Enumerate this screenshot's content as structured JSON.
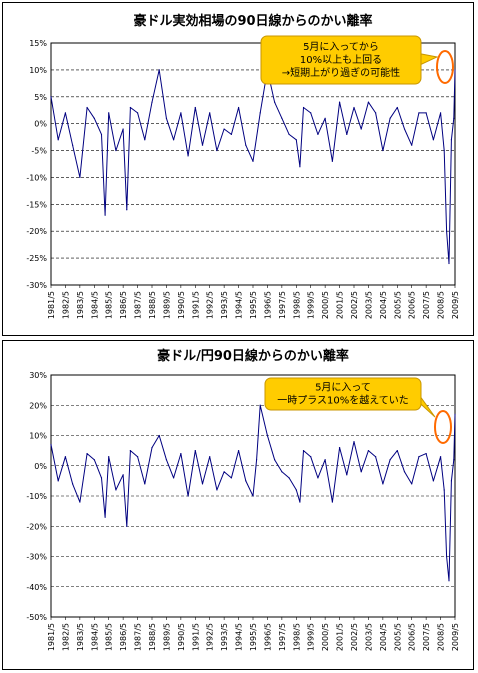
{
  "chart_data": [
    {
      "type": "line",
      "title": "豪ドル実効相場の90日線からのかい離率",
      "ylim": [
        -30,
        15
      ],
      "yticks": [
        15,
        10,
        5,
        0,
        -5,
        -10,
        -15,
        -20,
        -25,
        -30
      ],
      "ytick_labels": [
        "15%",
        "10%",
        "5%",
        "0%",
        "-5%",
        "-10%",
        "-15%",
        "-20%",
        "-25%",
        "-30%"
      ],
      "x_tick_labels": [
        "1981/5",
        "1982/5",
        "1983/5",
        "1984/5",
        "1985/5",
        "1986/5",
        "1987/5",
        "1988/5",
        "1989/5",
        "1990/5",
        "1991/5",
        "1992/5",
        "1993/5",
        "1994/5",
        "1995/5",
        "1996/5",
        "1997/5",
        "1998/5",
        "1999/5",
        "2000/5",
        "2001/5",
        "2002/5",
        "2003/5",
        "2004/5",
        "2005/5",
        "2006/5",
        "2007/5",
        "2008/5",
        "2009/5"
      ],
      "grid": "horizontal-dashed",
      "line_color": "#000080",
      "annotation": [
        "5月に入ってから",
        "10%以上も上回る",
        "→短期上がり過ぎの可能性"
      ],
      "series": [
        {
          "x": [
            "1981/5",
            "1981/11",
            "1982/5",
            "1982/11",
            "1983/5",
            "1983/11",
            "1984/5",
            "1984/11",
            "1985/2",
            "1985/5",
            "1985/11",
            "1986/5",
            "1986/8",
            "1986/11",
            "1987/5",
            "1987/11",
            "1988/5",
            "1988/11",
            "1989/5",
            "1989/11",
            "1990/5",
            "1990/11",
            "1991/5",
            "1991/11",
            "1992/5",
            "1992/11",
            "1993/5",
            "1993/11",
            "1994/5",
            "1994/11",
            "1995/5",
            "1995/11",
            "1996/5",
            "1996/11",
            "1997/5",
            "1997/11",
            "1998/5",
            "1998/8",
            "1998/11",
            "1999/5",
            "1999/11",
            "2000/5",
            "2000/11",
            "2001/5",
            "2001/11",
            "2002/5",
            "2002/11",
            "2003/5",
            "2003/11",
            "2004/5",
            "2004/11",
            "2005/5",
            "2005/11",
            "2006/5",
            "2006/11",
            "2007/5",
            "2007/11",
            "2008/5",
            "2008/8",
            "2008/10",
            "2008/12",
            "2009/2",
            "2009/4",
            "2009/5"
          ],
          "values": [
            5,
            -3,
            2,
            -4,
            -10,
            3,
            1,
            -2,
            -17,
            2,
            -5,
            -1,
            -16,
            3,
            2,
            -3,
            4,
            10,
            1,
            -3,
            2,
            -6,
            3,
            -4,
            2,
            -5,
            -1,
            -2,
            3,
            -4,
            -7,
            2,
            10,
            4,
            1,
            -2,
            -3,
            -8,
            3,
            2,
            -2,
            1,
            -7,
            4,
            -2,
            3,
            -1,
            4,
            2,
            -5,
            1,
            3,
            -1,
            -4,
            2,
            2,
            -3,
            2,
            -5,
            -20,
            -26,
            -3,
            1,
            10
          ]
        }
      ]
    },
    {
      "type": "line",
      "title": "豪ドル/円90日線からのかい離率",
      "ylim": [
        -50,
        30
      ],
      "yticks": [
        30,
        20,
        10,
        0,
        -10,
        -20,
        -30,
        -40,
        -50
      ],
      "ytick_labels": [
        "30%",
        "20%",
        "10%",
        "0%",
        "-10%",
        "-20%",
        "-30%",
        "-40%",
        "-50%"
      ],
      "x_tick_labels": [
        "1981/5",
        "1982/5",
        "1983/5",
        "1984/5",
        "1985/5",
        "1986/5",
        "1987/5",
        "1988/5",
        "1989/5",
        "1990/5",
        "1991/5",
        "1992/5",
        "1993/5",
        "1994/5",
        "1995/5",
        "1996/5",
        "1997/5",
        "1998/5",
        "1999/5",
        "2000/5",
        "2001/5",
        "2002/5",
        "2003/5",
        "2004/5",
        "2005/5",
        "2006/5",
        "2007/5",
        "2008/5",
        "2009/5"
      ],
      "grid": "horizontal-dashed",
      "line_color": "#000080",
      "annotation": [
        "5月に入って",
        "一時プラス10%を越えていた"
      ],
      "series": [
        {
          "x": [
            "1981/5",
            "1981/11",
            "1982/5",
            "1982/11",
            "1983/5",
            "1983/11",
            "1984/5",
            "1984/11",
            "1985/2",
            "1985/5",
            "1985/11",
            "1986/5",
            "1986/8",
            "1986/11",
            "1987/5",
            "1987/11",
            "1988/5",
            "1988/11",
            "1989/5",
            "1989/11",
            "1990/5",
            "1990/11",
            "1991/5",
            "1991/11",
            "1992/5",
            "1992/11",
            "1993/5",
            "1993/11",
            "1994/5",
            "1994/11",
            "1995/5",
            "1995/8",
            "1995/11",
            "1996/5",
            "1996/11",
            "1997/5",
            "1997/11",
            "1998/5",
            "1998/8",
            "1998/11",
            "1999/5",
            "1999/11",
            "2000/5",
            "2000/11",
            "2001/5",
            "2001/11",
            "2002/5",
            "2002/11",
            "2003/5",
            "2003/11",
            "2004/5",
            "2004/11",
            "2005/5",
            "2005/11",
            "2006/5",
            "2006/11",
            "2007/5",
            "2007/11",
            "2008/5",
            "2008/8",
            "2008/10",
            "2008/12",
            "2009/2",
            "2009/4",
            "2009/5"
          ],
          "values": [
            7,
            -5,
            3,
            -6,
            -12,
            4,
            2,
            -4,
            -17,
            3,
            -8,
            -3,
            -20,
            5,
            3,
            -6,
            6,
            10,
            2,
            -4,
            4,
            -10,
            5,
            -6,
            3,
            -8,
            -2,
            -4,
            5,
            -5,
            -10,
            2,
            20,
            10,
            2,
            -2,
            -4,
            -8,
            -12,
            5,
            3,
            -4,
            2,
            -12,
            6,
            -3,
            8,
            -2,
            5,
            3,
            -6,
            2,
            5,
            -2,
            -6,
            3,
            4,
            -5,
            3,
            -8,
            -30,
            -38,
            -5,
            2,
            17
          ]
        }
      ]
    }
  ]
}
